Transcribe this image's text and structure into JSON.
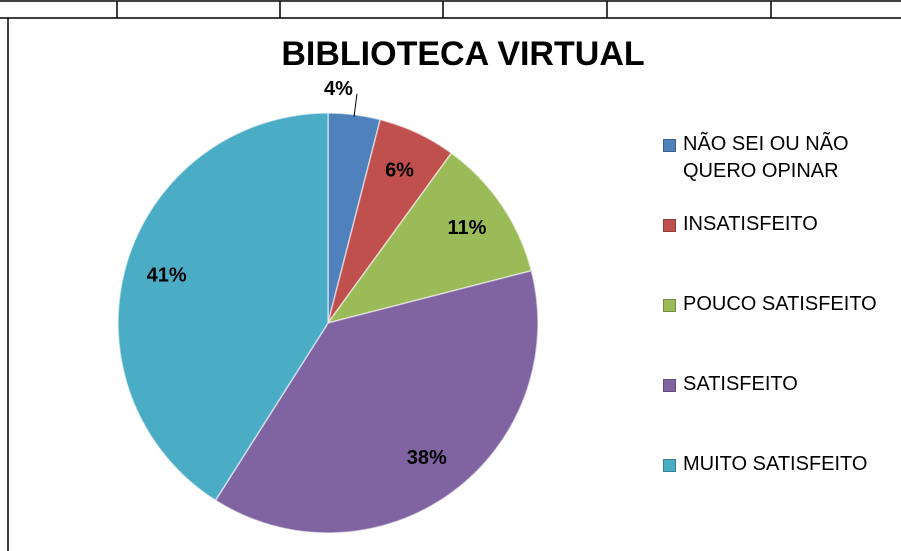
{
  "chart_data": {
    "type": "pie",
    "title": "BIBLIOTECA VIRTUAL",
    "categories": [
      "NÃO SEI OU NÃO QUERO OPINAR",
      "INSATISFEITO",
      "POUCO SATISFEITO",
      "SATISFEITO",
      "MUITO SATISFEITO"
    ],
    "values": [
      4,
      6,
      11,
      38,
      41
    ],
    "value_labels": [
      "4%",
      "6%",
      "11%",
      "38%",
      "41%"
    ],
    "colors": [
      "#4f81bd",
      "#c0504d",
      "#9bbb59",
      "#8064a2",
      "#4bacc6"
    ],
    "legend": "right"
  }
}
